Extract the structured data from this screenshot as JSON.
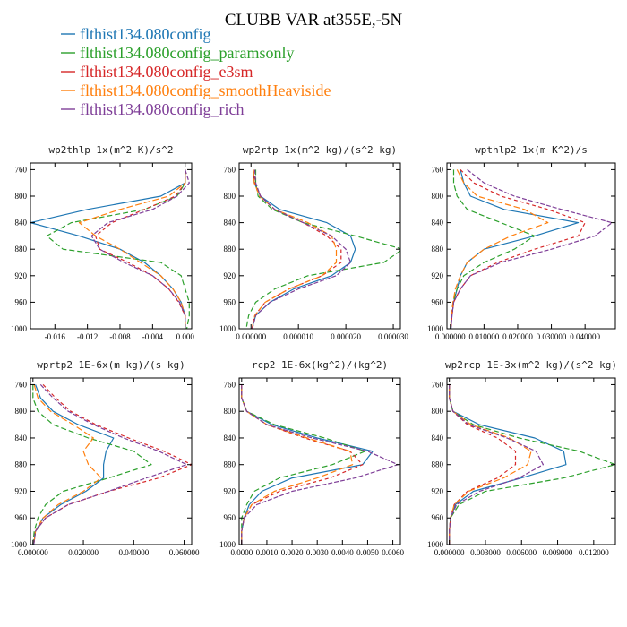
{
  "figure_title": "CLUBB VAR at355E,-5N",
  "colors": [
    "#1f77b4",
    "#2ca02c",
    "#d62728",
    "#ff7f0e",
    "#7f3f98"
  ],
  "legend": [
    {
      "name": "flthist134.080config",
      "color": "#1f77b4",
      "dash": "solid"
    },
    {
      "name": "flthist134.080config_paramsonly",
      "color": "#2ca02c",
      "dash": "dashed"
    },
    {
      "name": "flthist134.080config_e3sm",
      "color": "#d62728",
      "dash": "dashed"
    },
    {
      "name": "flthist134.080config_smoothHeaviside",
      "color": "#ff7f0e",
      "dash": "dashed"
    },
    {
      "name": "flthist134.080config_rich",
      "color": "#7f3f98",
      "dash": "dashed"
    }
  ],
  "chart_data": [
    {
      "type": "line",
      "title": "wp2thlp  1x(m^2 K)/s^2",
      "xlim": [
        -0.019,
        0.0008
      ],
      "xticks": [
        -0.016,
        -0.012,
        -0.008,
        -0.004,
        0.0
      ],
      "xtick_labels": [
        "-0.016",
        "-0.012",
        "-0.008",
        "-0.004",
        "0.000"
      ],
      "ylim": [
        1000,
        750
      ],
      "yticks": [
        760,
        800,
        840,
        880,
        920,
        960,
        1000
      ],
      "ytick_labels": [
        "760",
        "800",
        "840",
        "880",
        "920",
        "960",
        "1000"
      ],
      "y": [
        760,
        780,
        800,
        820,
        840,
        860,
        880,
        900,
        920,
        940,
        960,
        980,
        1000
      ],
      "series": [
        {
          "name": "flthist134.080config",
          "x": [
            0.0,
            0.0,
            -0.003,
            -0.012,
            -0.019,
            -0.013,
            -0.008,
            -0.005,
            -0.003,
            -0.0015,
            -0.0005,
            0.0,
            0.0
          ]
        },
        {
          "name": "flthist134.080config_paramsonly",
          "x": [
            0.0,
            0.0,
            -0.001,
            -0.005,
            -0.014,
            -0.017,
            -0.015,
            -0.003,
            -0.0005,
            0.0,
            0.0005,
            0.0005,
            0.0002
          ]
        },
        {
          "name": "flthist134.080config_e3sm",
          "x": [
            0.0,
            0.0,
            -0.0012,
            -0.005,
            -0.009,
            -0.011,
            -0.0105,
            -0.007,
            -0.004,
            -0.002,
            -0.0008,
            0.0,
            0.0
          ]
        },
        {
          "name": "flthist134.080config_smoothHeaviside",
          "x": [
            0.0,
            0.0,
            -0.002,
            -0.008,
            -0.013,
            -0.011,
            -0.008,
            -0.0055,
            -0.003,
            -0.0015,
            -0.0005,
            0.0,
            0.0
          ]
        },
        {
          "name": "flthist134.080config_rich",
          "x": [
            0.0,
            0.0005,
            -0.001,
            -0.004,
            -0.0095,
            -0.0115,
            -0.0105,
            -0.0075,
            -0.004,
            -0.002,
            -0.0007,
            0.0,
            0.0
          ]
        }
      ]
    },
    {
      "type": "line",
      "title": "wp2rtp  1x(m^2 kg)/(s^2 kg)",
      "xlim": [
        -2.5e-06,
        3.15e-05
      ],
      "xticks": [
        0.0,
        1e-05,
        2e-05,
        3e-05
      ],
      "xtick_labels": [
        "0.000000",
        "0.000010",
        "0.000020",
        "0.000030"
      ],
      "ylim": [
        1000,
        750
      ],
      "yticks": [
        760,
        800,
        840,
        880,
        920,
        960,
        1000
      ],
      "ytick_labels": [
        "760",
        "800",
        "840",
        "880",
        "920",
        "960",
        "1000"
      ],
      "y": [
        760,
        780,
        800,
        820,
        840,
        860,
        880,
        900,
        920,
        940,
        960,
        980,
        1000
      ],
      "series": [
        {
          "name": "flthist134.080config",
          "x": [
            5e-07,
            7e-07,
            2e-06,
            6e-06,
            1.6e-05,
            2.1e-05,
            2.2e-05,
            2.1e-05,
            1.7e-05,
            9e-06,
            4e-06,
            1e-06,
            2e-07
          ]
        },
        {
          "name": "flthist134.080config_paramsonly",
          "x": [
            1e-06,
            1e-06,
            1.5e-06,
            4.5e-06,
            1.1e-05,
            2.2e-05,
            3.2e-05,
            2.8e-05,
            1.2e-05,
            5e-06,
            1e-06,
            -5e-07,
            -1e-06
          ]
        },
        {
          "name": "flthist134.080config_e3sm",
          "x": [
            5e-07,
            8e-07,
            2e-06,
            5e-06,
            1.1e-05,
            1.6e-05,
            1.9e-05,
            1.9e-05,
            1.5e-05,
            8e-06,
            3e-06,
            8e-07,
            2e-07
          ]
        },
        {
          "name": "flthist134.080config_smoothHeaviside",
          "x": [
            5e-07,
            7e-07,
            1.8e-06,
            5e-06,
            1.2e-05,
            1.7e-05,
            1.8e-05,
            1.8e-05,
            1.5e-05,
            8e-06,
            3e-06,
            8e-07,
            2e-07
          ]
        },
        {
          "name": "flthist134.080config_rich",
          "x": [
            8e-07,
            1e-06,
            2e-06,
            5e-06,
            1.1e-05,
            1.7e-05,
            2e-05,
            2.1e-05,
            1.8e-05,
            1e-05,
            4e-06,
            1e-06,
            3e-07
          ]
        }
      ]
    },
    {
      "type": "line",
      "title": "wpthlp2  1x(m K^2)/s",
      "xlim": [
        -0.001,
        0.049
      ],
      "xticks": [
        0.0,
        0.01,
        0.02,
        0.03,
        0.04
      ],
      "xtick_labels": [
        "0.000000",
        "0.010000",
        "0.020000",
        "0.030000",
        "0.040000"
      ],
      "ylim": [
        1000,
        750
      ],
      "yticks": [
        760,
        800,
        840,
        880,
        920,
        960,
        1000
      ],
      "ytick_labels": [
        "760",
        "800",
        "840",
        "880",
        "920",
        "960",
        "1000"
      ],
      "y": [
        760,
        780,
        800,
        820,
        840,
        860,
        880,
        900,
        920,
        940,
        960,
        980,
        1000
      ],
      "series": [
        {
          "name": "flthist134.080config",
          "x": [
            0.003,
            0.004,
            0.006,
            0.016,
            0.038,
            0.025,
            0.01,
            0.005,
            0.003,
            0.002,
            0.001,
            0.0005,
            0.0002
          ]
        },
        {
          "name": "flthist134.080config_paramsonly",
          "x": [
            0.001,
            0.001,
            0.002,
            0.005,
            0.015,
            0.025,
            0.019,
            0.01,
            0.004,
            0.002,
            0.0008,
            0.0003,
            0.0001
          ]
        },
        {
          "name": "flthist134.080config_e3sm",
          "x": [
            0.003,
            0.007,
            0.015,
            0.029,
            0.04,
            0.038,
            0.025,
            0.014,
            0.006,
            0.003,
            0.001,
            0.0005,
            0.0002
          ]
        },
        {
          "name": "flthist134.080config_smoothHeaviside",
          "x": [
            0.002,
            0.004,
            0.008,
            0.022,
            0.029,
            0.018,
            0.01,
            0.005,
            0.003,
            0.0015,
            0.0008,
            0.0003,
            0.0001
          ]
        },
        {
          "name": "flthist134.080config_rich",
          "x": [
            0.005,
            0.01,
            0.019,
            0.033,
            0.048,
            0.043,
            0.03,
            0.015,
            0.006,
            0.003,
            0.001,
            0.0005,
            0.0002
          ]
        }
      ]
    },
    {
      "type": "line",
      "title": "wprtp2  1E-6x(m kg)/(s kg)",
      "xlim": [
        -0.001,
        0.063
      ],
      "xticks": [
        0.0,
        0.02,
        0.04,
        0.06
      ],
      "xtick_labels": [
        "0.000000",
        "0.020000",
        "0.040000",
        "0.060000"
      ],
      "ylim": [
        1000,
        750
      ],
      "yticks": [
        760,
        800,
        840,
        880,
        920,
        960,
        1000
      ],
      "ytick_labels": [
        "760",
        "800",
        "840",
        "880",
        "920",
        "960",
        "1000"
      ],
      "y": [
        760,
        780,
        800,
        820,
        840,
        860,
        880,
        900,
        920,
        940,
        960,
        980,
        1000
      ],
      "series": [
        {
          "name": "flthist134.080config",
          "x": [
            0.001,
            0.003,
            0.008,
            0.018,
            0.032,
            0.029,
            0.028,
            0.028,
            0.021,
            0.011,
            0.004,
            0.001,
            0.0003
          ]
        },
        {
          "name": "flthist134.080config_paramsonly",
          "x": [
            0.0,
            0.0,
            0.002,
            0.008,
            0.022,
            0.04,
            0.047,
            0.03,
            0.012,
            0.005,
            0.002,
            0.0005,
            0.0
          ]
        },
        {
          "name": "flthist134.080config_e3sm",
          "x": [
            0.004,
            0.009,
            0.015,
            0.025,
            0.038,
            0.052,
            0.063,
            0.05,
            0.03,
            0.014,
            0.005,
            0.001,
            0.0003
          ]
        },
        {
          "name": "flthist134.080config_smoothHeaviside",
          "x": [
            0.0005,
            0.002,
            0.007,
            0.016,
            0.024,
            0.02,
            0.022,
            0.027,
            0.02,
            0.01,
            0.004,
            0.001,
            0.0003
          ]
        },
        {
          "name": "flthist134.080config_rich",
          "x": [
            0.003,
            0.008,
            0.014,
            0.024,
            0.036,
            0.05,
            0.061,
            0.045,
            0.03,
            0.014,
            0.005,
            0.001,
            0.0003
          ]
        }
      ]
    },
    {
      "type": "line",
      "title": "rcp2  1E-6x(kg^2)/(kg^2)",
      "xlim": [
        -0.0001,
        0.0063
      ],
      "xticks": [
        0.0,
        0.001,
        0.002,
        0.003,
        0.004,
        0.005,
        0.006
      ],
      "xtick_labels": [
        "0.0000",
        "0.0010",
        "0.0020",
        "0.0030",
        "0.0040",
        "0.0050",
        "0.0060"
      ],
      "ylim": [
        1000,
        750
      ],
      "yticks": [
        760,
        800,
        840,
        880,
        920,
        960,
        1000
      ],
      "ytick_labels": [
        "760",
        "800",
        "840",
        "880",
        "920",
        "960",
        "1000"
      ],
      "y": [
        760,
        780,
        800,
        820,
        840,
        860,
        880,
        900,
        920,
        940,
        960,
        980,
        1000
      ],
      "series": [
        {
          "name": "flthist134.080config",
          "x": [
            0.0,
            0.0,
            0.0002,
            0.0012,
            0.003,
            0.0052,
            0.0048,
            0.002,
            0.0008,
            0.0003,
            0.0001,
            0.0,
            0.0
          ]
        },
        {
          "name": "flthist134.080config_paramsonly",
          "x": [
            0.0,
            0.0,
            0.0002,
            0.0013,
            0.0033,
            0.0049,
            0.0036,
            0.0015,
            0.0005,
            0.0002,
            0.0,
            0.0,
            0.0
          ]
        },
        {
          "name": "flthist134.080config_e3sm",
          "x": [
            0.0,
            0.0,
            0.0002,
            0.001,
            0.0025,
            0.0043,
            0.0048,
            0.0035,
            0.0015,
            0.0004,
            0.0001,
            0.0,
            0.0
          ]
        },
        {
          "name": "flthist134.080config_smoothHeaviside",
          "x": [
            0.0,
            0.0,
            0.0002,
            0.001,
            0.0026,
            0.0043,
            0.0044,
            0.003,
            0.0013,
            0.0004,
            0.0001,
            0.0,
            0.0
          ]
        },
        {
          "name": "flthist134.080config_rich",
          "x": [
            0.0,
            0.0,
            0.0002,
            0.001,
            0.0028,
            0.005,
            0.0062,
            0.0045,
            0.002,
            0.0006,
            0.0001,
            0.0,
            0.0
          ]
        }
      ]
    },
    {
      "type": "line",
      "title": "wp2rcp  1E-3x(m^2 kg)/(s^2 kg)",
      "xlim": [
        -0.0002,
        0.0138
      ],
      "xticks": [
        0.0,
        0.003,
        0.006,
        0.009,
        0.012
      ],
      "xtick_labels": [
        "0.000000",
        "0.003000",
        "0.006000",
        "0.009000",
        "0.012000"
      ],
      "ylim": [
        1000,
        750
      ],
      "yticks": [
        760,
        800,
        840,
        880,
        920,
        960,
        1000
      ],
      "ytick_labels": [
        "760",
        "800",
        "840",
        "880",
        "920",
        "960",
        "1000"
      ],
      "y": [
        760,
        780,
        800,
        820,
        840,
        860,
        880,
        900,
        920,
        940,
        960,
        980,
        1000
      ],
      "series": [
        {
          "name": "flthist134.080config",
          "x": [
            0.0,
            0.0,
            0.0003,
            0.0025,
            0.0071,
            0.0095,
            0.0097,
            0.006,
            0.002,
            0.0005,
            0.0001,
            0.0,
            0.0
          ]
        },
        {
          "name": "flthist134.080config_paramsonly",
          "x": [
            0.0,
            0.0,
            0.0003,
            0.002,
            0.0058,
            0.0108,
            0.0138,
            0.0095,
            0.003,
            0.0008,
            0.0001,
            0.0,
            0.0
          ]
        },
        {
          "name": "flthist134.080config_e3sm",
          "x": [
            0.0,
            0.0,
            0.0003,
            0.0015,
            0.004,
            0.0055,
            0.0055,
            0.004,
            0.0015,
            0.0004,
            0.0001,
            0.0,
            0.0
          ]
        },
        {
          "name": "flthist134.080config_smoothHeaviside",
          "x": [
            0.0,
            0.0,
            0.0003,
            0.0018,
            0.005,
            0.0068,
            0.0065,
            0.0045,
            0.0016,
            0.0004,
            0.0001,
            0.0,
            0.0
          ]
        },
        {
          "name": "flthist134.080config_rich",
          "x": [
            0.0,
            0.0,
            0.0003,
            0.0016,
            0.0048,
            0.0072,
            0.0078,
            0.0058,
            0.0025,
            0.0006,
            0.0001,
            0.0,
            0.0
          ]
        }
      ]
    }
  ]
}
